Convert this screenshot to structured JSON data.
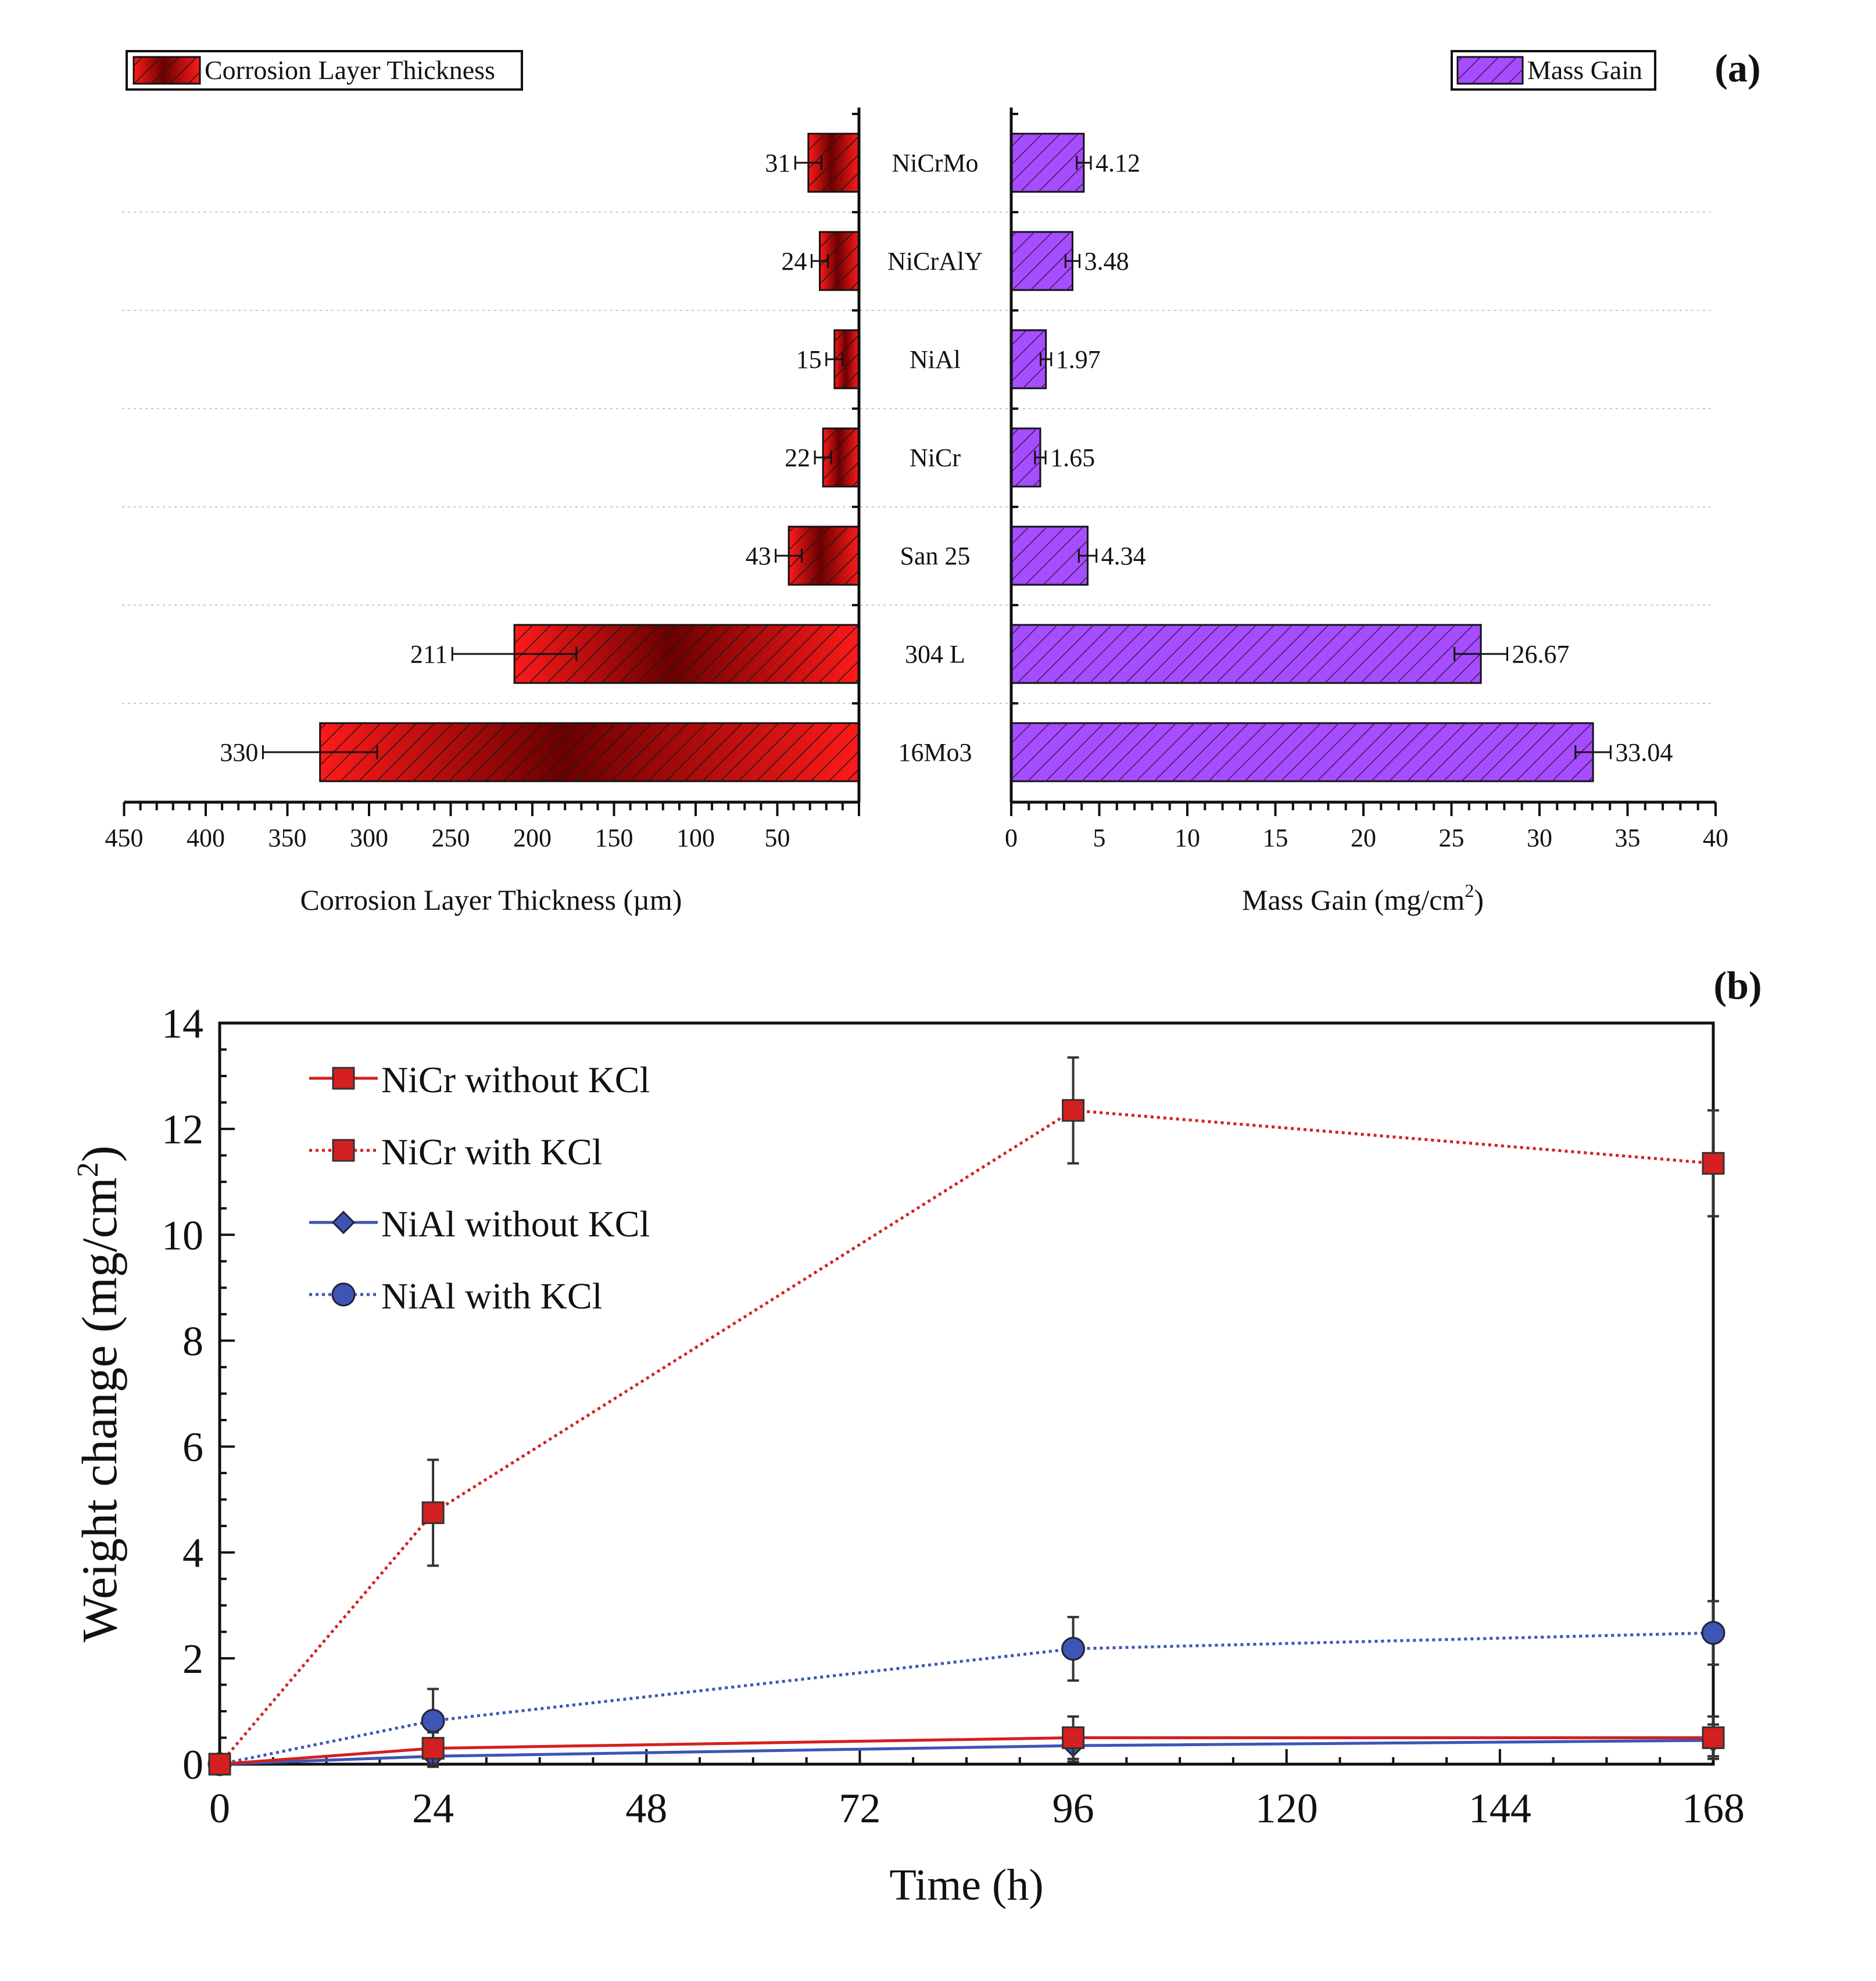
{
  "colors": {
    "thickness": "#ff1a1a",
    "thickness_dark": "#6b0000",
    "mass_gain": "#a64dff",
    "nicr": "#d42020",
    "nial": "#3d55b5",
    "axis": "#111111",
    "grid": "#c8c8c8"
  },
  "chart_data": [
    {
      "type": "bar",
      "orientation": "horizontal",
      "panel_label": "(a)",
      "categories": [
        "NiCrMo",
        "NiCrAlY",
        "NiAl",
        "NiCr",
        "San 25",
        "304 L",
        "16Mo3"
      ],
      "left": {
        "legend": "Corrosion Layer Thickness",
        "xlabel": "Corrosion Layer Thickness (µm)",
        "values": [
          31,
          24,
          15,
          22,
          43,
          211,
          330
        ],
        "value_labels": [
          "31",
          "24",
          "15",
          "22",
          "43",
          "211",
          "330"
        ],
        "errors": [
          8,
          5,
          5,
          5,
          8,
          38,
          35
        ],
        "xlim": [
          450,
          0
        ],
        "ticks": [
          "450",
          "400",
          "350",
          "300",
          "250",
          "200",
          "150",
          "100",
          "50"
        ],
        "tick_values": [
          450,
          400,
          350,
          300,
          250,
          200,
          150,
          100,
          50
        ]
      },
      "right": {
        "legend": "Mass Gain",
        "xlabel": "Mass Gain (mg/cm",
        "xlabel_sup": "2",
        "xlabel_end": ")",
        "values": [
          4.12,
          3.48,
          1.97,
          1.65,
          4.34,
          26.67,
          33.04
        ],
        "value_labels": [
          "4.12",
          "3.48",
          "1.97",
          "1.65",
          "4.34",
          "26.67",
          "33.04"
        ],
        "errors": [
          0.4,
          0.4,
          0.3,
          0.3,
          0.5,
          1.5,
          1.0
        ],
        "xlim": [
          0,
          40
        ],
        "ticks": [
          "0",
          "5",
          "10",
          "15",
          "20",
          "25",
          "30",
          "35",
          "40"
        ],
        "tick_values": [
          0,
          5,
          10,
          15,
          20,
          25,
          30,
          35,
          40
        ]
      },
      "grid": "horizontal dotted"
    },
    {
      "type": "line",
      "panel_label": "(b)",
      "xlabel": "Time (h)",
      "ylabel": "Weight change (mg/cm",
      "ylabel_sup": "2",
      "ylabel_end": ")",
      "xlim": [
        0,
        168
      ],
      "ylim": [
        0,
        14
      ],
      "xticks": [
        "0",
        "24",
        "48",
        "72",
        "96",
        "120",
        "144",
        "168"
      ],
      "xtick_values": [
        0,
        24,
        48,
        72,
        96,
        120,
        144,
        168
      ],
      "yticks": [
        "0",
        "2",
        "4",
        "6",
        "8",
        "10",
        "12",
        "14"
      ],
      "ytick_values": [
        0,
        2,
        4,
        6,
        8,
        10,
        12,
        14
      ],
      "legend_position": "top-left",
      "series": [
        {
          "name": "NiCr without KCl",
          "x": [
            0,
            24,
            96,
            168
          ],
          "y": [
            0,
            0.3,
            0.5,
            0.5
          ],
          "err": [
            0,
            0.3,
            0.4,
            0.4
          ],
          "marker": "square",
          "dash": "solid",
          "color": "#d42020"
        },
        {
          "name": "NiCr with KCl",
          "x": [
            0,
            24,
            96,
            168
          ],
          "y": [
            0,
            4.75,
            12.35,
            11.35
          ],
          "err": [
            0,
            1.0,
            1.0,
            1.0
          ],
          "marker": "square",
          "dash": "dotted",
          "color": "#d42020"
        },
        {
          "name": "NiAl without KCl",
          "x": [
            0,
            24,
            96,
            168
          ],
          "y": [
            0,
            0.15,
            0.35,
            0.45
          ],
          "err": [
            0,
            0.2,
            0.3,
            0.3
          ],
          "marker": "diamond",
          "dash": "solid",
          "color": "#3d55b5"
        },
        {
          "name": "NiAl with KCl",
          "x": [
            0,
            24,
            96,
            168
          ],
          "y": [
            0,
            0.82,
            2.18,
            2.48
          ],
          "err": [
            0,
            0.6,
            0.6,
            0.6
          ],
          "marker": "circle",
          "dash": "dotted",
          "color": "#3d55b5"
        }
      ]
    }
  ]
}
